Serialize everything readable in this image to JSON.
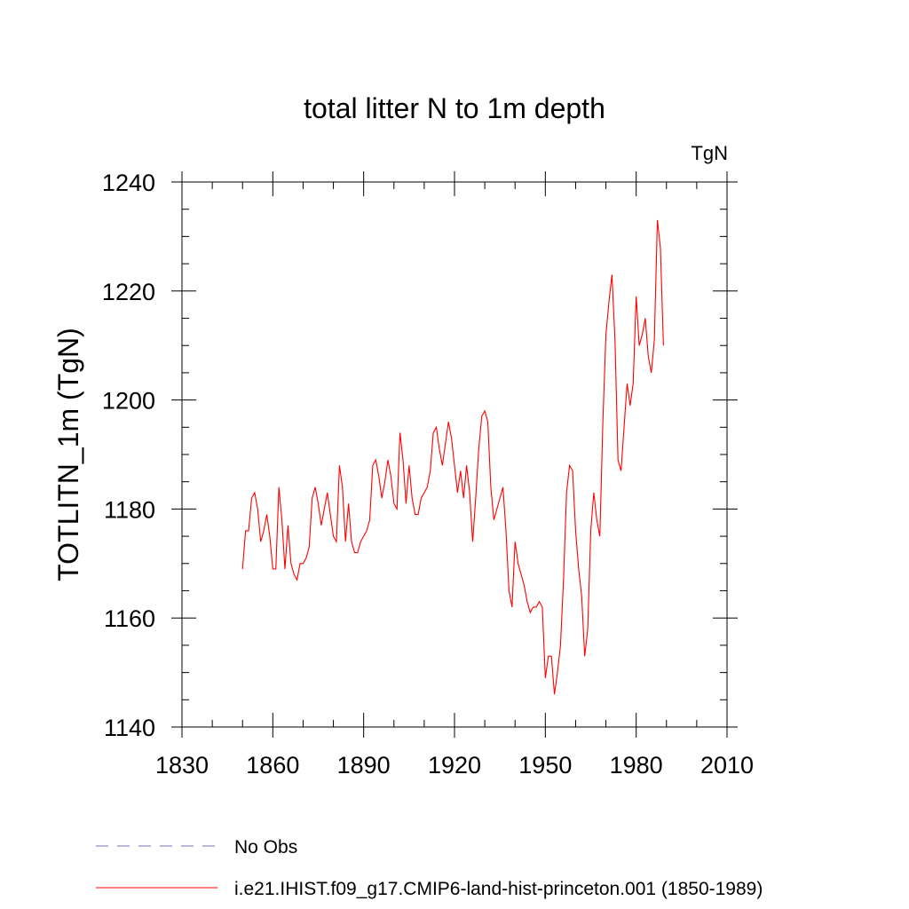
{
  "chart_data": {
    "type": "line",
    "title": "total litter N to 1m depth",
    "units_label": "TgN",
    "ylabel": "TOTLITN_1m  (TgN)",
    "xlabel": "",
    "xlim": [
      1830,
      2010
    ],
    "ylim": [
      1140,
      1240
    ],
    "x_ticks": [
      1830,
      1860,
      1890,
      1920,
      1950,
      1980,
      2010
    ],
    "y_ticks": [
      1140,
      1160,
      1180,
      1200,
      1220,
      1240
    ],
    "grid": false,
    "legend_position": "bottom-left",
    "series": [
      {
        "name": "No Obs",
        "color": "#7b6fb0",
        "dash": "dashed",
        "x": [],
        "y": []
      },
      {
        "name": "i.e21.IHIST.f09_g17.CMIP6-land-hist-princeton.001 (1850-1989)",
        "color": "#ff0000",
        "dash": "solid",
        "x": [
          1850,
          1851,
          1852,
          1853,
          1854,
          1855,
          1856,
          1857,
          1858,
          1859,
          1860,
          1861,
          1862,
          1863,
          1864,
          1865,
          1866,
          1867,
          1868,
          1869,
          1870,
          1871,
          1872,
          1873,
          1874,
          1875,
          1876,
          1877,
          1878,
          1879,
          1880,
          1881,
          1882,
          1883,
          1884,
          1885,
          1886,
          1887,
          1888,
          1889,
          1890,
          1891,
          1892,
          1893,
          1894,
          1895,
          1896,
          1897,
          1898,
          1899,
          1900,
          1901,
          1902,
          1903,
          1904,
          1905,
          1906,
          1907,
          1908,
          1909,
          1910,
          1911,
          1912,
          1913,
          1914,
          1915,
          1916,
          1917,
          1918,
          1919,
          1920,
          1921,
          1922,
          1923,
          1924,
          1925,
          1926,
          1927,
          1928,
          1929,
          1930,
          1931,
          1932,
          1933,
          1934,
          1935,
          1936,
          1937,
          1938,
          1939,
          1940,
          1941,
          1942,
          1943,
          1944,
          1945,
          1946,
          1947,
          1948,
          1949,
          1950,
          1951,
          1952,
          1953,
          1954,
          1955,
          1956,
          1957,
          1958,
          1959,
          1960,
          1961,
          1962,
          1963,
          1964,
          1965,
          1966,
          1967,
          1968,
          1969,
          1970,
          1971,
          1972,
          1973,
          1974,
          1975,
          1976,
          1977,
          1978,
          1979,
          1980,
          1981,
          1982,
          1983,
          1984,
          1985,
          1986,
          1987,
          1988,
          1989
        ],
        "y": [
          1169,
          1176,
          1176,
          1182,
          1183,
          1180,
          1174,
          1176,
          1179,
          1175,
          1169,
          1169,
          1184,
          1178,
          1169,
          1177,
          1170,
          1168,
          1167,
          1170,
          1170,
          1171,
          1173,
          1182,
          1184,
          1181,
          1177,
          1180,
          1183,
          1179,
          1175,
          1174,
          1188,
          1184,
          1174,
          1181,
          1174,
          1172,
          1172,
          1174,
          1175,
          1176,
          1178,
          1188,
          1189,
          1186,
          1182,
          1185,
          1189,
          1186,
          1181,
          1180,
          1194,
          1189,
          1181,
          1188,
          1182,
          1179,
          1179,
          1182,
          1183,
          1184,
          1187,
          1194,
          1195,
          1191,
          1188,
          1192,
          1196,
          1193,
          1188,
          1183,
          1187,
          1182,
          1188,
          1183,
          1174,
          1182,
          1191,
          1197,
          1198,
          1196,
          1184,
          1178,
          1180,
          1182,
          1184,
          1176,
          1165,
          1162,
          1174,
          1170,
          1168,
          1166,
          1163,
          1161,
          1162,
          1162,
          1163,
          1162,
          1149,
          1153,
          1153,
          1146,
          1150,
          1155,
          1167,
          1183,
          1188,
          1187,
          1176,
          1169,
          1164,
          1153,
          1158,
          1176,
          1183,
          1178,
          1175,
          1196,
          1212,
          1218,
          1223,
          1211,
          1189,
          1187,
          1195,
          1203,
          1199,
          1203,
          1219,
          1210,
          1212,
          1215,
          1208,
          1205,
          1211,
          1233,
          1228,
          1210
        ]
      }
    ]
  }
}
